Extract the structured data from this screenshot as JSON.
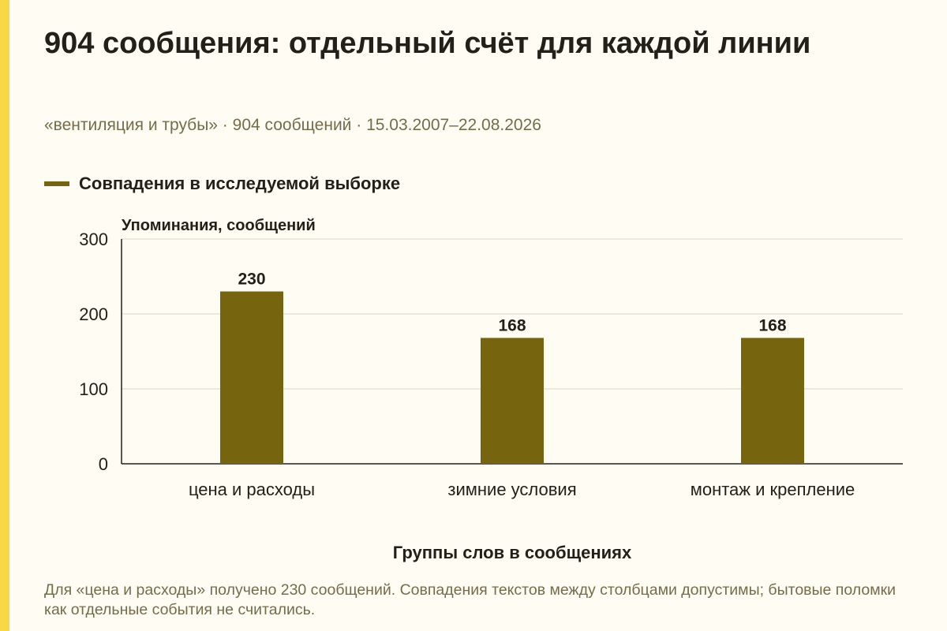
{
  "title": "904 сообщения: отдельный счёт для каждой линии",
  "subtitle": "«вентиляция и трубы» · 904 сообщений · 15.03.2007–22.08.2026",
  "note": "Для «цена и расходы» получено 230 сообщений. Совпадения текстов между столбцами допустимы; бытовые поломки как отдельные события не считались.",
  "colors": {
    "background": "#fefcf3",
    "accent_stripe": "#f8d845",
    "bar": "#77640f",
    "text": "#222018",
    "muted_text": "#756c4a",
    "grid": "#d9d5c6"
  },
  "chart_data": {
    "type": "bar",
    "categories": [
      "цена и расходы",
      "зимние условия",
      "монтаж и крепление"
    ],
    "series": [
      {
        "name": "Совпадения в исследуемой выборке",
        "values": [
          230,
          168,
          168
        ]
      }
    ],
    "xlabel": "Группы слов в сообщениях",
    "ylabel": "Упоминания, сообщений",
    "ylim": [
      0,
      300
    ],
    "yticks": [
      0,
      100,
      200,
      300
    ],
    "grid": true,
    "legend_position": "top-left",
    "data_labels": true
  }
}
